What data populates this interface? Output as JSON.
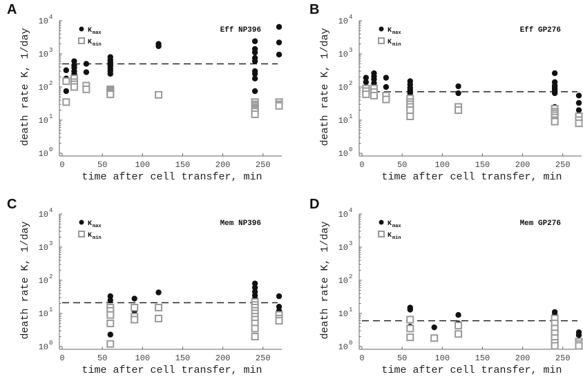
{
  "chart_data": [
    {
      "panel": "A",
      "type": "scatter",
      "title": "Eff NP396",
      "xlabel": "time after cell transfer, min",
      "ylabel": "death rate K, 1/day",
      "xlim": [
        0,
        270
      ],
      "ylim": [
        1,
        10000
      ],
      "yscale": "log",
      "xticks": [
        0,
        50,
        100,
        150,
        200,
        250
      ],
      "yticks": [
        "10^0",
        "10^1",
        "10^2",
        "10^3",
        "10^4"
      ],
      "reference_line": 500,
      "legend": {
        "position": "top-left",
        "entries": [
          {
            "label": "K",
            "sub": "max"
          },
          {
            "label": "K",
            "sub": "min"
          }
        ]
      },
      "series": [
        {
          "name": "Kmax",
          "marker": "filled-circle",
          "color": "#111111",
          "x": [
            5,
            5,
            5,
            15,
            15,
            15,
            15,
            15,
            30,
            30,
            60,
            60,
            60,
            60,
            60,
            60,
            60,
            60,
            120,
            120,
            240,
            240,
            240,
            240,
            240,
            240,
            240,
            240,
            240,
            270,
            270,
            270
          ],
          "y": [
            320,
            180,
            75,
            600,
            450,
            380,
            300,
            250,
            500,
            280,
            800,
            650,
            550,
            480,
            420,
            360,
            300,
            250,
            2000,
            1700,
            2400,
            1400,
            1100,
            750,
            600,
            300,
            250,
            180,
            75,
            6500,
            2200,
            950
          ]
        },
        {
          "name": "Kmin",
          "marker": "open-square",
          "color": "#999999",
          "x": [
            5,
            5,
            15,
            15,
            15,
            15,
            30,
            30,
            60,
            60,
            60,
            60,
            60,
            60,
            120,
            240,
            240,
            240,
            240,
            240,
            240,
            240,
            240,
            270,
            270,
            270
          ],
          "y": [
            150,
            35,
            180,
            140,
            120,
            100,
            110,
            85,
            85,
            80,
            75,
            70,
            65,
            60,
            58,
            35,
            30,
            27,
            24,
            22,
            20,
            18,
            15,
            35,
            30,
            27
          ]
        }
      ]
    },
    {
      "panel": "B",
      "type": "scatter",
      "title": "Eff GP276",
      "xlabel": "time after cell transfer, min",
      "ylabel": "death rate K, 1/day",
      "xlim": [
        0,
        270
      ],
      "ylim": [
        1,
        10000
      ],
      "yscale": "log",
      "xticks": [
        0,
        50,
        100,
        150,
        200,
        250
      ],
      "yticks": [
        "10^0",
        "10^1",
        "10^2",
        "10^3",
        "10^4"
      ],
      "reference_line": 72,
      "legend": {
        "position": "top-left",
        "entries": [
          {
            "label": "K",
            "sub": "max"
          },
          {
            "label": "K",
            "sub": "min"
          }
        ]
      },
      "series": [
        {
          "name": "Kmax",
          "marker": "filled-circle",
          "color": "#111111",
          "x": [
            5,
            5,
            5,
            15,
            15,
            15,
            15,
            30,
            30,
            60,
            60,
            60,
            60,
            60,
            60,
            60,
            120,
            120,
            240,
            240,
            240,
            240,
            240,
            240,
            240,
            240,
            270,
            270,
            270
          ],
          "y": [
            190,
            140,
            100,
            260,
            210,
            170,
            130,
            190,
            100,
            150,
            120,
            95,
            80,
            65,
            50,
            40,
            105,
            65,
            260,
            140,
            110,
            95,
            85,
            75,
            65,
            25,
            55,
            33,
            20
          ]
        },
        {
          "name": "Kmin",
          "marker": "open-square",
          "color": "#999999",
          "x": [
            5,
            5,
            5,
            15,
            15,
            15,
            30,
            30,
            60,
            60,
            60,
            60,
            60,
            60,
            120,
            120,
            240,
            240,
            240,
            240,
            240,
            240,
            240,
            270,
            270,
            270
          ],
          "y": [
            90,
            75,
            60,
            90,
            70,
            55,
            55,
            42,
            45,
            35,
            30,
            25,
            20,
            13,
            25,
            20,
            22,
            18,
            16,
            14,
            12,
            10,
            9,
            13,
            10,
            8
          ]
        }
      ]
    },
    {
      "panel": "C",
      "type": "scatter",
      "title": "Mem NP396",
      "xlabel": "time after cell transfer, min",
      "ylabel": "death rate K, 1/day",
      "xlim": [
        0,
        270
      ],
      "ylim": [
        1,
        10000
      ],
      "yscale": "log",
      "xticks": [
        0,
        50,
        100,
        150,
        200,
        250
      ],
      "yticks": [
        "10^0",
        "10^1",
        "10^2",
        "10^3",
        "10^4"
      ],
      "reference_line": 21,
      "legend": {
        "position": "top-left",
        "entries": [
          {
            "label": "K",
            "sub": "max"
          },
          {
            "label": "K",
            "sub": "min"
          }
        ]
      },
      "series": [
        {
          "name": "Kmax",
          "marker": "filled-circle",
          "color": "#111111",
          "x": [
            60,
            60,
            60,
            60,
            60,
            90,
            90,
            90,
            120,
            120,
            240,
            240,
            240,
            240,
            240,
            240,
            240,
            240,
            240,
            240,
            270,
            270,
            270
          ],
          "y": [
            33,
            25,
            16,
            10,
            2.3,
            28,
            15,
            12,
            43,
            15,
            80,
            60,
            45,
            35,
            28,
            22,
            18,
            15,
            12,
            10,
            33,
            16,
            12
          ]
        },
        {
          "name": "Kmin",
          "marker": "open-square",
          "color": "#999999",
          "x": [
            60,
            60,
            60,
            60,
            60,
            90,
            90,
            90,
            120,
            120,
            240,
            240,
            240,
            240,
            240,
            240,
            240,
            240,
            240,
            240,
            270,
            270,
            270
          ],
          "y": [
            15,
            12,
            9,
            5,
            1.2,
            15,
            8,
            6.5,
            15,
            7,
            22,
            18,
            15,
            12,
            10,
            8,
            6.5,
            5,
            3.5,
            2,
            9,
            7,
            6
          ]
        }
      ]
    },
    {
      "panel": "D",
      "type": "scatter",
      "title": "Mem GP276",
      "xlabel": "time after cell transfer, min",
      "ylabel": "death rate K, 1/day",
      "xlim": [
        0,
        270
      ],
      "ylim": [
        1,
        10000
      ],
      "yscale": "log",
      "xticks": [
        0,
        50,
        100,
        150,
        200,
        250
      ],
      "yticks": [
        "10^0",
        "10^1",
        "10^2",
        "10^3",
        "10^4"
      ],
      "reference_line": 6,
      "legend": {
        "position": "top-left",
        "entries": [
          {
            "label": "K",
            "sub": "max"
          },
          {
            "label": "K",
            "sub": "min"
          }
        ]
      },
      "series": [
        {
          "name": "Kmax",
          "marker": "filled-circle",
          "color": "#111111",
          "x": [
            60,
            60,
            60,
            60,
            90,
            120,
            120,
            240,
            240,
            240,
            240,
            240,
            240,
            240,
            240,
            270,
            270
          ],
          "y": [
            15,
            13,
            7,
            4,
            3.8,
            9,
            5,
            11,
            9,
            7.5,
            6,
            5,
            4,
            3,
            2,
            2.7,
            2.2
          ]
        },
        {
          "name": "Kmin",
          "marker": "open-square",
          "color": "#999999",
          "x": [
            60,
            60,
            60,
            90,
            120,
            120,
            240,
            240,
            240,
            240,
            240,
            240,
            240,
            270,
            270,
            270
          ],
          "y": [
            6.5,
            3.5,
            1.9,
            1.8,
            4.3,
            2.4,
            7,
            5,
            3.5,
            2.5,
            1.8,
            1.3,
            1.05,
            1.4,
            1.2,
            1.05
          ]
        }
      ]
    }
  ]
}
